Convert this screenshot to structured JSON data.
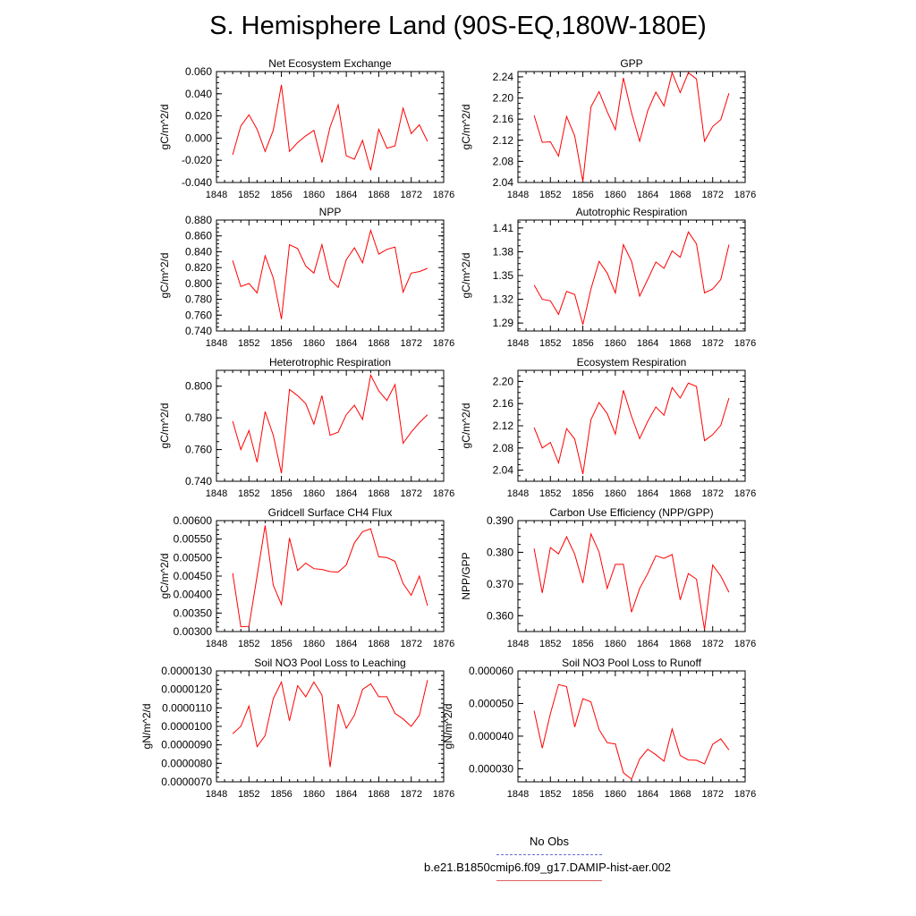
{
  "title": "S. Hemisphere Land (90S-EQ,180W-180E)",
  "legend": {
    "obs_label": "No Obs",
    "case_label": "b.e21.B1850cmip6.f09_g17.DAMIP-hist-aer.002",
    "obs_color": "#6b6bd6",
    "case_color": "#ff0000"
  },
  "chart_data": [
    {
      "type": "line",
      "title": "Net Ecosystem Exchange",
      "ylabel": "gC/m^2/d",
      "xlim": [
        1848,
        1876
      ],
      "ylim": [
        -0.04,
        0.06
      ],
      "yticks": [
        -0.04,
        -0.02,
        0.0,
        0.02,
        0.04,
        0.06
      ],
      "ytick_labels": [
        "-0.040",
        "-0.020",
        "0.000",
        "0.020",
        "0.040",
        "0.060"
      ],
      "xticks": [
        1848,
        1852,
        1856,
        1860,
        1864,
        1868,
        1872,
        1876
      ],
      "x": [
        1850,
        1851,
        1852,
        1853,
        1854,
        1855,
        1856,
        1857,
        1858,
        1859,
        1860,
        1861,
        1862,
        1863,
        1864,
        1865,
        1866,
        1867,
        1868,
        1869,
        1870,
        1871,
        1872,
        1873,
        1874
      ],
      "series": [
        {
          "color": "#ff0000",
          "values": [
            -0.015,
            0.011,
            0.021,
            0.008,
            -0.012,
            0.007,
            0.048,
            -0.012,
            -0.004,
            0.002,
            0.007,
            -0.022,
            0.01,
            0.03,
            -0.016,
            -0.019,
            -0.002,
            -0.029,
            0.008,
            -0.009,
            -0.007,
            0.027,
            0.004,
            0.012,
            -0.003
          ]
        }
      ]
    },
    {
      "type": "line",
      "title": "GPP",
      "ylabel": "gC/m^2/d",
      "xlim": [
        1848,
        1876
      ],
      "ylim": [
        2.04,
        2.25
      ],
      "yticks": [
        2.04,
        2.08,
        2.12,
        2.16,
        2.2,
        2.24
      ],
      "ytick_labels": [
        "2.04",
        "2.08",
        "2.12",
        "2.16",
        "2.20",
        "2.24"
      ],
      "xticks": [
        1848,
        1852,
        1856,
        1860,
        1864,
        1868,
        1872,
        1876
      ],
      "x": [
        1850,
        1851,
        1852,
        1853,
        1854,
        1855,
        1856,
        1857,
        1858,
        1859,
        1860,
        1861,
        1862,
        1863,
        1864,
        1865,
        1866,
        1867,
        1868,
        1869,
        1870,
        1871,
        1872,
        1873,
        1874
      ],
      "series": [
        {
          "color": "#ff0000",
          "values": [
            2.167,
            2.116,
            2.117,
            2.09,
            2.165,
            2.128,
            2.042,
            2.183,
            2.212,
            2.174,
            2.14,
            2.238,
            2.172,
            2.118,
            2.176,
            2.211,
            2.185,
            2.248,
            2.21,
            2.248,
            2.236,
            2.118,
            2.146,
            2.159,
            2.209
          ]
        }
      ]
    },
    {
      "type": "line",
      "title": "NPP",
      "ylabel": "gC/m^2/d",
      "xlim": [
        1848,
        1876
      ],
      "ylim": [
        0.74,
        0.88
      ],
      "yticks": [
        0.74,
        0.76,
        0.78,
        0.8,
        0.82,
        0.84,
        0.86,
        0.88
      ],
      "ytick_labels": [
        "0.740",
        "0.760",
        "0.780",
        "0.800",
        "0.820",
        "0.840",
        "0.860",
        "0.880"
      ],
      "xticks": [
        1848,
        1852,
        1856,
        1860,
        1864,
        1868,
        1872,
        1876
      ],
      "x": [
        1850,
        1851,
        1852,
        1853,
        1854,
        1855,
        1856,
        1857,
        1858,
        1859,
        1860,
        1861,
        1862,
        1863,
        1864,
        1865,
        1866,
        1867,
        1868,
        1869,
        1870,
        1871,
        1872,
        1873,
        1874
      ],
      "series": [
        {
          "color": "#ff0000",
          "values": [
            0.829,
            0.796,
            0.8,
            0.788,
            0.835,
            0.807,
            0.755,
            0.849,
            0.844,
            0.822,
            0.813,
            0.849,
            0.805,
            0.795,
            0.83,
            0.845,
            0.826,
            0.867,
            0.837,
            0.843,
            0.846,
            0.789,
            0.813,
            0.815,
            0.819
          ]
        }
      ]
    },
    {
      "type": "line",
      "title": "Autotrophic Respiration",
      "ylabel": "gC/m^2/d",
      "xlim": [
        1848,
        1876
      ],
      "ylim": [
        1.28,
        1.42
      ],
      "yticks": [
        1.29,
        1.32,
        1.35,
        1.38,
        1.41
      ],
      "ytick_labels": [
        "1.29",
        "1.32",
        "1.35",
        "1.38",
        "1.41"
      ],
      "xticks": [
        1848,
        1852,
        1856,
        1860,
        1864,
        1868,
        1872,
        1876
      ],
      "x": [
        1850,
        1851,
        1852,
        1853,
        1854,
        1855,
        1856,
        1857,
        1858,
        1859,
        1860,
        1861,
        1862,
        1863,
        1864,
        1865,
        1866,
        1867,
        1868,
        1869,
        1870,
        1871,
        1872,
        1873,
        1874
      ],
      "series": [
        {
          "color": "#ff0000",
          "values": [
            1.338,
            1.32,
            1.318,
            1.301,
            1.33,
            1.326,
            1.288,
            1.333,
            1.368,
            1.353,
            1.328,
            1.389,
            1.368,
            1.324,
            1.345,
            1.367,
            1.359,
            1.381,
            1.373,
            1.405,
            1.39,
            1.328,
            1.333,
            1.345,
            1.389
          ]
        }
      ]
    },
    {
      "type": "line",
      "title": "Heterotrophic Respiration",
      "ylabel": "gC/m^2/d",
      "xlim": [
        1848,
        1876
      ],
      "ylim": [
        0.74,
        0.81
      ],
      "yticks": [
        0.74,
        0.76,
        0.78,
        0.8
      ],
      "ytick_labels": [
        "0.740",
        "0.760",
        "0.780",
        "0.800"
      ],
      "xticks": [
        1848,
        1852,
        1856,
        1860,
        1864,
        1868,
        1872,
        1876
      ],
      "x": [
        1850,
        1851,
        1852,
        1853,
        1854,
        1855,
        1856,
        1857,
        1858,
        1859,
        1860,
        1861,
        1862,
        1863,
        1864,
        1865,
        1866,
        1867,
        1868,
        1869,
        1870,
        1871,
        1872,
        1873,
        1874
      ],
      "series": [
        {
          "color": "#ff0000",
          "values": [
            0.778,
            0.76,
            0.772,
            0.752,
            0.784,
            0.769,
            0.745,
            0.798,
            0.794,
            0.789,
            0.776,
            0.794,
            0.769,
            0.771,
            0.782,
            0.788,
            0.779,
            0.807,
            0.797,
            0.791,
            0.801,
            0.764,
            0.771,
            0.777,
            0.782
          ]
        }
      ]
    },
    {
      "type": "line",
      "title": "Ecosystem Respiration",
      "ylabel": "gC/m^2/d",
      "xlim": [
        1848,
        1876
      ],
      "ylim": [
        2.02,
        2.22
      ],
      "yticks": [
        2.04,
        2.08,
        2.12,
        2.16,
        2.2
      ],
      "ytick_labels": [
        "2.04",
        "2.08",
        "2.12",
        "2.16",
        "2.20"
      ],
      "xticks": [
        1848,
        1852,
        1856,
        1860,
        1864,
        1868,
        1872,
        1876
      ],
      "x": [
        1850,
        1851,
        1852,
        1853,
        1854,
        1855,
        1856,
        1857,
        1858,
        1859,
        1860,
        1861,
        1862,
        1863,
        1864,
        1865,
        1866,
        1867,
        1868,
        1869,
        1870,
        1871,
        1872,
        1873,
        1874
      ],
      "series": [
        {
          "color": "#ff0000",
          "values": [
            2.117,
            2.08,
            2.09,
            2.053,
            2.115,
            2.096,
            2.033,
            2.131,
            2.162,
            2.142,
            2.105,
            2.184,
            2.137,
            2.097,
            2.128,
            2.154,
            2.139,
            2.189,
            2.17,
            2.197,
            2.191,
            2.093,
            2.104,
            2.121,
            2.17
          ]
        }
      ]
    },
    {
      "type": "line",
      "title": "Gridcell Surface CH4 Flux",
      "ylabel": "gC/m^2/d",
      "xlim": [
        1848,
        1876
      ],
      "ylim": [
        0.003,
        0.006
      ],
      "yticks": [
        0.003,
        0.0035,
        0.004,
        0.0045,
        0.005,
        0.0055,
        0.006
      ],
      "ytick_labels": [
        "0.00300",
        "0.00350",
        "0.00400",
        "0.00450",
        "0.00500",
        "0.00550",
        "0.00600"
      ],
      "xticks": [
        1848,
        1852,
        1856,
        1860,
        1864,
        1868,
        1872,
        1876
      ],
      "x": [
        1850,
        1851,
        1852,
        1853,
        1854,
        1855,
        1856,
        1857,
        1858,
        1859,
        1860,
        1861,
        1862,
        1863,
        1864,
        1865,
        1866,
        1867,
        1868,
        1869,
        1870,
        1871,
        1872,
        1873,
        1874
      ],
      "series": [
        {
          "color": "#ff0000",
          "values": [
            0.00458,
            0.00313,
            0.00314,
            0.0045,
            0.00587,
            0.00425,
            0.00373,
            0.00553,
            0.00465,
            0.00485,
            0.0047,
            0.00468,
            0.00462,
            0.00461,
            0.0048,
            0.0054,
            0.0057,
            0.00578,
            0.00502,
            0.005,
            0.0049,
            0.0043,
            0.00398,
            0.0045,
            0.0037
          ]
        }
      ]
    },
    {
      "type": "line",
      "title": "Carbon Use Efficiency (NPP/GPP)",
      "ylabel": "NPP/GPP",
      "xlim": [
        1848,
        1876
      ],
      "ylim": [
        0.355,
        0.39
      ],
      "yticks": [
        0.36,
        0.37,
        0.38,
        0.39
      ],
      "ytick_labels": [
        "0.360",
        "0.370",
        "0.380",
        "0.390"
      ],
      "xticks": [
        1848,
        1852,
        1856,
        1860,
        1864,
        1868,
        1872,
        1876
      ],
      "x": [
        1850,
        1851,
        1852,
        1853,
        1854,
        1855,
        1856,
        1857,
        1858,
        1859,
        1860,
        1861,
        1862,
        1863,
        1864,
        1865,
        1866,
        1867,
        1868,
        1869,
        1870,
        1871,
        1872,
        1873,
        1874
      ],
      "series": [
        {
          "color": "#ff0000",
          "values": [
            0.3812,
            0.3672,
            0.3815,
            0.3795,
            0.3849,
            0.3794,
            0.3703,
            0.3858,
            0.3801,
            0.3686,
            0.3762,
            0.3762,
            0.3611,
            0.3686,
            0.3733,
            0.3789,
            0.3781,
            0.3793,
            0.365,
            0.3733,
            0.3715,
            0.3556,
            0.376,
            0.3725,
            0.3674
          ]
        }
      ]
    },
    {
      "type": "line",
      "title": "Soil NO3 Pool Loss to Leaching",
      "ylabel": "gN/m^2/d",
      "xlim": [
        1848,
        1876
      ],
      "ylim": [
        7e-06,
        1.3e-05
      ],
      "yticks": [
        7e-06,
        8e-06,
        9e-06,
        1e-05,
        1.1e-05,
        1.2e-05,
        1.3e-05
      ],
      "ytick_labels": [
        "0.0000070",
        "0.0000080",
        "0.0000090",
        "0.0000100",
        "0.0000110",
        "0.0000120",
        "0.0000130"
      ],
      "xticks": [
        1848,
        1852,
        1856,
        1860,
        1864,
        1868,
        1872,
        1876
      ],
      "x": [
        1850,
        1851,
        1852,
        1853,
        1854,
        1855,
        1856,
        1857,
        1858,
        1859,
        1860,
        1861,
        1862,
        1863,
        1864,
        1865,
        1866,
        1867,
        1868,
        1869,
        1870,
        1871,
        1872,
        1873,
        1874
      ],
      "series": [
        {
          "color": "#ff0000",
          "values": [
            9.6e-06,
            1e-05,
            1.11e-05,
            8.9e-06,
            9.5e-06,
            1.15e-05,
            1.24e-05,
            1.03e-05,
            1.22e-05,
            1.16e-05,
            1.24e-05,
            1.17e-05,
            7.8e-06,
            1.12e-05,
            9.9e-06,
            1.06e-05,
            1.2e-05,
            1.23e-05,
            1.16e-05,
            1.16e-05,
            1.07e-05,
            1.04e-05,
            1e-05,
            1.06e-05,
            1.25e-05
          ]
        }
      ]
    },
    {
      "type": "line",
      "title": "Soil NO3 Pool Loss to Runoff",
      "ylabel": "gN/m^2/d",
      "xlim": [
        1848,
        1876
      ],
      "ylim": [
        2.6e-05,
        6e-05
      ],
      "yticks": [
        3e-05,
        4e-05,
        5e-05,
        6e-05
      ],
      "ytick_labels": [
        "0.000030",
        "0.000040",
        "0.000050",
        "0.000060"
      ],
      "xticks": [
        1848,
        1852,
        1856,
        1860,
        1864,
        1868,
        1872,
        1876
      ],
      "x": [
        1850,
        1851,
        1852,
        1853,
        1854,
        1855,
        1856,
        1857,
        1858,
        1859,
        1860,
        1861,
        1862,
        1863,
        1864,
        1865,
        1866,
        1867,
        1868,
        1869,
        1870,
        1871,
        1872,
        1873,
        1874
      ],
      "series": [
        {
          "color": "#ff0000",
          "values": [
            4.78e-05,
            3.63e-05,
            4.69e-05,
            5.58e-05,
            5.52e-05,
            4.28e-05,
            5.15e-05,
            5.05e-05,
            4.2e-05,
            3.8e-05,
            3.76e-05,
            2.88e-05,
            2.68e-05,
            3.3e-05,
            3.6e-05,
            3.43e-05,
            3.23e-05,
            4.22e-05,
            3.41e-05,
            3.27e-05,
            3.26e-05,
            3.15e-05,
            3.75e-05,
            3.92e-05,
            3.58e-05
          ]
        }
      ]
    }
  ]
}
